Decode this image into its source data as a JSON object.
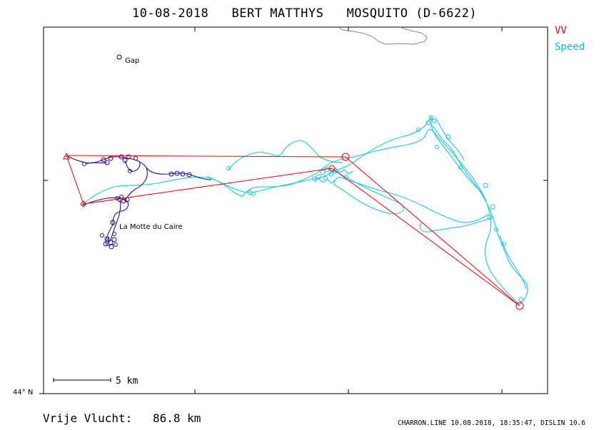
{
  "header": {
    "date": "10-08-2018",
    "pilot": "BERT MATTHYS",
    "glider": "MOSQUITO (D-6622)"
  },
  "legend": {
    "vv_label": "VV",
    "speed_label": "Speed"
  },
  "places": [
    {
      "name": "Gap"
    },
    {
      "name": "La Motte du Caire"
    }
  ],
  "scale_bar": {
    "label": "5 km"
  },
  "axis": {
    "lat_label": "44° N"
  },
  "distance": {
    "label": "Vrije Vlucht:",
    "value": "86.8 km"
  },
  "footer": {
    "text": "CHARRON.LINE 10.08.2018, 18:35:47, DISLIN 10.6"
  },
  "colors": {
    "vv": "#ff0000",
    "speed": "#00c8e8",
    "track_dark": "#1a0a8c",
    "terrain": "#808080"
  },
  "icons": [
    "turnpoint-circle-icon",
    "start-triangle-icon",
    "place-marker-icon"
  ]
}
